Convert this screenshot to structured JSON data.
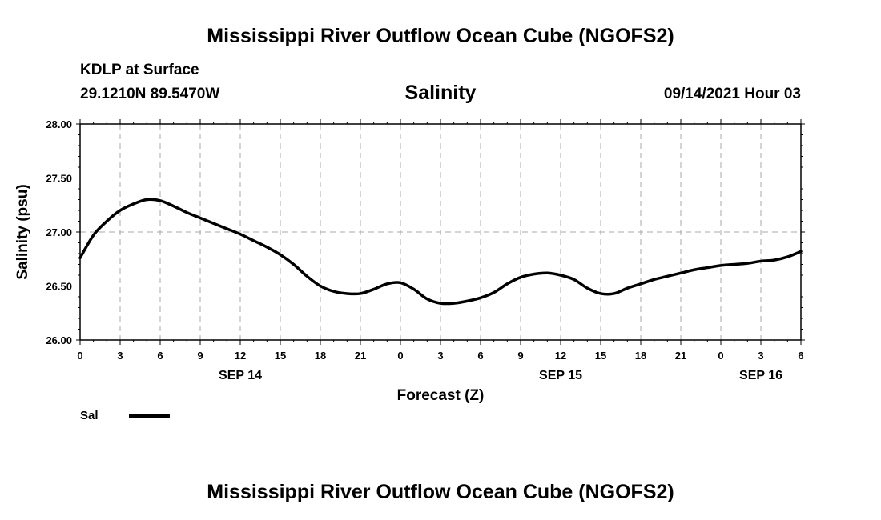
{
  "header": {
    "top_title": "Mississippi River Outflow Ocean Cube (NGOFS2)",
    "station": "KDLP at Surface",
    "location": "29.1210N  89.5470W",
    "variable": "Salinity",
    "datetime": "09/14/2021 Hour 03",
    "bottom_title": "Mississippi River Outflow Ocean Cube (NGOFS2)"
  },
  "legend": {
    "label": "Sal"
  },
  "chart_data": {
    "type": "line",
    "title": "Salinity",
    "xlabel": "Forecast (Z)",
    "ylabel": "Salinity (psu)",
    "xlim": [
      0,
      54
    ],
    "ylim": [
      26.0,
      28.0
    ],
    "x_tick_values": [
      0,
      3,
      6,
      9,
      12,
      15,
      18,
      21,
      24,
      27,
      30,
      33,
      36,
      39,
      42,
      45,
      48,
      51,
      54
    ],
    "x_tick_labels": [
      "0",
      "3",
      "6",
      "9",
      "12",
      "15",
      "18",
      "21",
      "0",
      "3",
      "6",
      "9",
      "12",
      "15",
      "18",
      "21",
      "0",
      "3",
      "6"
    ],
    "y_ticks": [
      26.0,
      26.5,
      27.0,
      27.5,
      28.0
    ],
    "y_tick_labels": [
      "26.00",
      "26.50",
      "27.00",
      "27.50",
      "28.00"
    ],
    "date_labels": [
      {
        "label": "SEP 14",
        "x": 12
      },
      {
        "label": "SEP 15",
        "x": 36
      },
      {
        "label": "SEP 16",
        "x": 51
      }
    ],
    "grid": true,
    "series": [
      {
        "name": "Sal",
        "color": "#000000",
        "x": [
          0,
          1,
          2,
          3,
          4,
          5,
          6,
          7,
          8,
          9,
          10,
          11,
          12,
          13,
          14,
          15,
          16,
          17,
          18,
          19,
          20,
          21,
          22,
          23,
          24,
          25,
          26,
          27,
          28,
          29,
          30,
          31,
          32,
          33,
          34,
          35,
          36,
          37,
          38,
          39,
          40,
          41,
          42,
          43,
          44,
          45,
          46,
          47,
          48,
          49,
          50,
          51,
          52,
          53,
          54
        ],
        "values": [
          26.76,
          26.97,
          27.1,
          27.2,
          27.26,
          27.3,
          27.29,
          27.24,
          27.18,
          27.13,
          27.08,
          27.03,
          26.98,
          26.92,
          26.86,
          26.79,
          26.7,
          26.59,
          26.5,
          26.45,
          26.43,
          26.43,
          26.47,
          26.52,
          26.53,
          26.47,
          26.38,
          26.34,
          26.34,
          26.36,
          26.39,
          26.44,
          26.52,
          26.58,
          26.61,
          26.62,
          26.6,
          26.56,
          26.48,
          26.43,
          26.43,
          26.48,
          26.52,
          26.56,
          26.59,
          26.62,
          26.65,
          26.67,
          26.69,
          26.7,
          26.71,
          26.73,
          26.74,
          26.77,
          26.82
        ]
      }
    ]
  }
}
